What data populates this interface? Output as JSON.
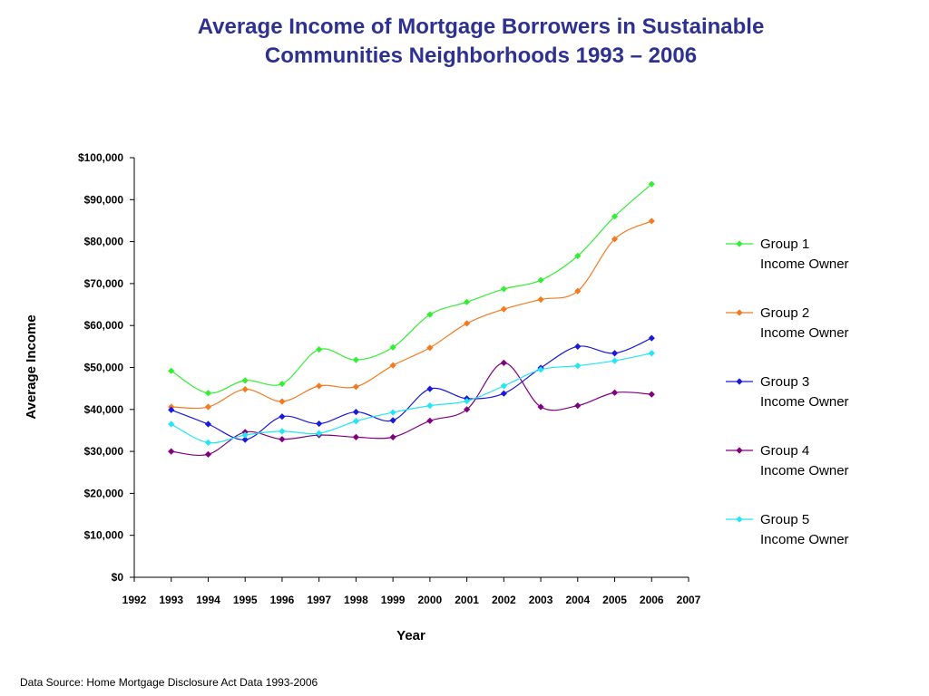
{
  "title_line1": "Average Income of Mortgage Borrowers in Sustainable",
  "title_line2": "Communities Neighborhoods 1993 – 2006",
  "source": "Data Source: Home Mortgage Disclosure Act Data 1993-2006",
  "chart_data": {
    "type": "line",
    "title": "Average Income of Mortgage Borrowers in Sustainable Communities Neighborhoods 1993 – 2006",
    "xlabel": "Year",
    "ylabel": "Average Income",
    "xlim": [
      1992,
      2007
    ],
    "ylim": [
      0,
      100000
    ],
    "x_ticks": [
      1992,
      1993,
      1994,
      1995,
      1996,
      1997,
      1998,
      1999,
      2000,
      2001,
      2002,
      2003,
      2004,
      2005,
      2006,
      2007
    ],
    "y_ticks": [
      0,
      10000,
      20000,
      30000,
      40000,
      50000,
      60000,
      70000,
      80000,
      90000,
      100000
    ],
    "y_tick_labels": [
      "$0",
      "$10,000",
      "$20,000",
      "$30,000",
      "$40,000",
      "$50,000",
      "$60,000",
      "$70,000",
      "$80,000",
      "$90,000",
      "$100,000"
    ],
    "grid": false,
    "legend_position": "right",
    "x": [
      1993,
      1994,
      1995,
      1996,
      1997,
      1998,
      1999,
      2000,
      2001,
      2002,
      2003,
      2004,
      2005,
      2006
    ],
    "series": [
      {
        "name_line1": "Group 1",
        "name_line2": "Income Owner",
        "color": "#33ee33",
        "values": [
          49200,
          43900,
          46900,
          46100,
          54300,
          51800,
          54800,
          62600,
          65600,
          68700,
          70800,
          76600,
          86000,
          93700
        ]
      },
      {
        "name_line1": "Group 2",
        "name_line2": "Income Owner",
        "color": "#f47a20",
        "values": [
          40600,
          40600,
          44800,
          41900,
          45600,
          45400,
          50500,
          54700,
          60500,
          63900,
          66200,
          68200,
          80600,
          84900
        ]
      },
      {
        "name_line1": "Group 3",
        "name_line2": "Income Owner",
        "color": "#1a1adb",
        "values": [
          39900,
          36500,
          32800,
          38300,
          36600,
          39400,
          37400,
          44900,
          42600,
          43800,
          49900,
          55000,
          53400,
          57000
        ]
      },
      {
        "name_line1": "Group 4",
        "name_line2": "Income Owner",
        "color": "#800080",
        "values": [
          30000,
          29300,
          34600,
          32900,
          33900,
          33400,
          33400,
          37300,
          40000,
          51100,
          40600,
          40900,
          44000,
          43600
        ]
      },
      {
        "name_line1": "Group 5",
        "name_line2": "Income Owner",
        "color": "#22e5f5",
        "values": [
          36500,
          32100,
          33900,
          34800,
          34300,
          37200,
          39300,
          40900,
          42000,
          45600,
          49500,
          50400,
          51600,
          53400
        ]
      }
    ]
  }
}
